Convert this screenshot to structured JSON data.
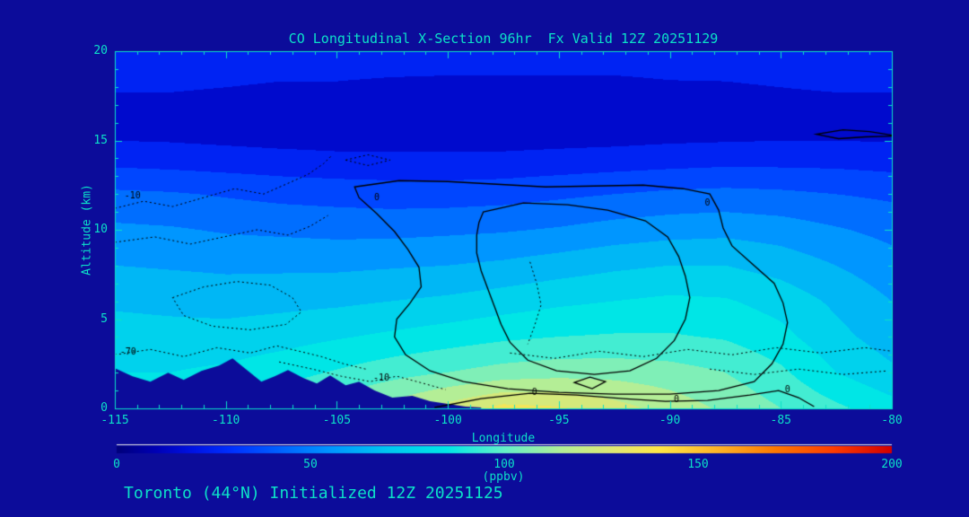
{
  "window": {
    "background": "#0c0c9a"
  },
  "chart_data": {
    "type": "heatmap",
    "title": "CO Longitudinal X-Section 96hr  Fx Valid 12Z 20251129",
    "xlabel": "Longitude",
    "ylabel": "Altitude (km)",
    "footer": "Toronto (44°N) Initialized 12Z 20251125",
    "xlim": [
      -115,
      -80
    ],
    "ylim": [
      0,
      20
    ],
    "x_ticks": [
      -115,
      -110,
      -105,
      -100,
      -95,
      -90,
      -85,
      -80
    ],
    "y_ticks": [
      0,
      5,
      10,
      15,
      20
    ],
    "grid_on": false,
    "legend_position": "none",
    "colors": {
      "background": "#0c0c9a",
      "text": "#0ce0c8",
      "axis": "#0ce0c8",
      "contour": "#000000",
      "terrain": "#0c0c9a",
      "colorbar_topline": "#e6e6e6"
    },
    "colorbar": {
      "label": "(ppbv)",
      "min": 0,
      "max": 200,
      "ticks": [
        0,
        50,
        100,
        150,
        200
      ],
      "stops": [
        [
          0,
          "#00007a"
        ],
        [
          10,
          "#0000b4"
        ],
        [
          20,
          "#0014e6"
        ],
        [
          30,
          "#0032ff"
        ],
        [
          40,
          "#005aff"
        ],
        [
          55,
          "#0096ff"
        ],
        [
          70,
          "#00c8f0"
        ],
        [
          85,
          "#00e6e6"
        ],
        [
          100,
          "#64f0c8"
        ],
        [
          115,
          "#b4ee96"
        ],
        [
          130,
          "#e6e66e"
        ],
        [
          140,
          "#ffe646"
        ],
        [
          155,
          "#ffb428"
        ],
        [
          170,
          "#ff7800"
        ],
        [
          185,
          "#ff3c00"
        ],
        [
          200,
          "#d20000"
        ]
      ]
    },
    "grid": {
      "longitudes": [
        -115,
        -112.5,
        -110,
        -107.5,
        -105,
        -102.5,
        -100,
        -97.5,
        -95,
        -92.5,
        -90,
        -87.5,
        -85,
        -82.5,
        -80
      ],
      "altitudes": [
        20,
        18,
        16,
        14,
        12,
        10,
        8,
        6,
        4,
        2,
        0
      ],
      "values_ppbv": [
        [
          27,
          27,
          26,
          25,
          25,
          25,
          24,
          24,
          24,
          24,
          24,
          25,
          26,
          26,
          26
        ],
        [
          21,
          21,
          20,
          19,
          19,
          18,
          18,
          18,
          18,
          18,
          19,
          19,
          20,
          21,
          21
        ],
        [
          14,
          14,
          13,
          12,
          12,
          12,
          12,
          12,
          12,
          12,
          13,
          13,
          14,
          14,
          14
        ],
        [
          26,
          25,
          24,
          23,
          22,
          22,
          22,
          22,
          23,
          24,
          25,
          26,
          26,
          26,
          25
        ],
        [
          42,
          41,
          39,
          37,
          36,
          35,
          35,
          36,
          38,
          40,
          42,
          43,
          42,
          40,
          38
        ],
        [
          52,
          51,
          49,
          48,
          47,
          47,
          48,
          49,
          51,
          54,
          56,
          57,
          55,
          51,
          47
        ],
        [
          60,
          59,
          58,
          58,
          58,
          59,
          60,
          62,
          65,
          68,
          70,
          70,
          66,
          60,
          54
        ],
        [
          68,
          67,
          66,
          67,
          68,
          70,
          72,
          75,
          78,
          80,
          82,
          81,
          76,
          68,
          60
        ],
        [
          75,
          74,
          74,
          76,
          79,
          82,
          85,
          88,
          90,
          91,
          91,
          89,
          83,
          73,
          65
        ],
        [
          80,
          80,
          82,
          86,
          91,
          96,
          100,
          104,
          106,
          106,
          104,
          100,
          92,
          80,
          72
        ],
        [
          84,
          86,
          90,
          96,
          105,
          114,
          124,
          133,
          131,
          124,
          116,
          108,
          100,
          92,
          84
        ]
      ]
    },
    "terrain_km": [
      [
        -115,
        2.25
      ],
      [
        -114.2,
        1.8
      ],
      [
        -113.4,
        1.5
      ],
      [
        -112.6,
        2.0
      ],
      [
        -111.9,
        1.6
      ],
      [
        -111.1,
        2.1
      ],
      [
        -110.3,
        2.4
      ],
      [
        -109.7,
        2.8
      ],
      [
        -109.1,
        2.2
      ],
      [
        -108.4,
        1.5
      ],
      [
        -107.8,
        1.8
      ],
      [
        -107.2,
        2.15
      ],
      [
        -106.5,
        1.7
      ],
      [
        -105.9,
        1.4
      ],
      [
        -105.3,
        1.85
      ],
      [
        -104.6,
        1.3
      ],
      [
        -104.0,
        1.5
      ],
      [
        -103.3,
        1.0
      ],
      [
        -102.5,
        0.6
      ],
      [
        -101.6,
        0.7
      ],
      [
        -100.8,
        0.4
      ],
      [
        -100.0,
        0.25
      ],
      [
        -99.2,
        0.1
      ],
      [
        -98.5,
        0.05
      ]
    ],
    "contours": [
      {
        "id": "outer-0",
        "style": "solid",
        "closed": true,
        "points": [
          [
            -104.2,
            12.4
          ],
          [
            -102.2,
            12.75
          ],
          [
            -100,
            12.7
          ],
          [
            -97.8,
            12.55
          ],
          [
            -95.6,
            12.4
          ],
          [
            -93.4,
            12.45
          ],
          [
            -91.2,
            12.5
          ],
          [
            -89.4,
            12.3
          ],
          [
            -88.2,
            12.0
          ],
          [
            -87.8,
            11.1
          ],
          [
            -87.6,
            10.1
          ],
          [
            -87.2,
            9.1
          ],
          [
            -86.3,
            8.1
          ],
          [
            -85.3,
            7.0
          ],
          [
            -84.9,
            5.9
          ],
          [
            -84.7,
            4.8
          ],
          [
            -84.9,
            3.6
          ],
          [
            -85.4,
            2.5
          ],
          [
            -86.2,
            1.5
          ],
          [
            -87.8,
            1.0
          ],
          [
            -90,
            0.8
          ],
          [
            -92.5,
            0.8
          ],
          [
            -95,
            0.9
          ],
          [
            -97.3,
            1.1
          ],
          [
            -99.3,
            1.5
          ],
          [
            -100.8,
            2.1
          ],
          [
            -101.9,
            3.0
          ],
          [
            -102.4,
            4.0
          ],
          [
            -102.3,
            5.0
          ],
          [
            -101.7,
            5.9
          ],
          [
            -101.2,
            6.8
          ],
          [
            -101.3,
            7.9
          ],
          [
            -101.8,
            8.9
          ],
          [
            -102.4,
            9.9
          ],
          [
            -103.2,
            10.9
          ],
          [
            -104.0,
            11.8
          ]
        ]
      },
      {
        "id": "inner-0",
        "style": "solid",
        "closed": true,
        "points": [
          [
            -98.4,
            11.0
          ],
          [
            -96.6,
            11.5
          ],
          [
            -94.6,
            11.4
          ],
          [
            -92.8,
            11.1
          ],
          [
            -91.1,
            10.5
          ],
          [
            -90.1,
            9.6
          ],
          [
            -89.6,
            8.5
          ],
          [
            -89.3,
            7.4
          ],
          [
            -89.1,
            6.2
          ],
          [
            -89.3,
            5.0
          ],
          [
            -89.8,
            3.8
          ],
          [
            -90.6,
            2.8
          ],
          [
            -91.8,
            2.1
          ],
          [
            -93.4,
            1.9
          ],
          [
            -95.1,
            2.1
          ],
          [
            -96.4,
            2.7
          ],
          [
            -97.2,
            3.7
          ],
          [
            -97.6,
            4.7
          ],
          [
            -97.9,
            5.7
          ],
          [
            -98.2,
            6.7
          ],
          [
            -98.5,
            7.7
          ],
          [
            -98.7,
            8.7
          ],
          [
            -98.7,
            9.7
          ],
          [
            -98.6,
            10.4
          ]
        ]
      },
      {
        "id": "small-0",
        "style": "solid",
        "closed": true,
        "points": [
          [
            -94.3,
            1.45
          ],
          [
            -93.6,
            1.75
          ],
          [
            -92.9,
            1.5
          ],
          [
            -93.5,
            1.1
          ]
        ]
      },
      {
        "id": "topright-0",
        "style": "solid",
        "closed": false,
        "points": [
          [
            -80,
            15.3
          ],
          [
            -81,
            15.5
          ],
          [
            -82.2,
            15.6
          ],
          [
            -83.4,
            15.35
          ],
          [
            -82.4,
            15.1
          ],
          [
            -81.2,
            15.2
          ],
          [
            -80,
            15.25
          ]
        ]
      },
      {
        "id": "bottom-0",
        "style": "solid",
        "closed": false,
        "points": [
          [
            -100.6,
            0.05
          ],
          [
            -98.5,
            0.55
          ],
          [
            -96.3,
            0.85
          ],
          [
            -94.2,
            0.75
          ],
          [
            -92.1,
            0.55
          ],
          [
            -90.2,
            0.4
          ],
          [
            -88.3,
            0.45
          ],
          [
            -86.4,
            0.75
          ],
          [
            -85.1,
            1.0
          ],
          [
            -84.2,
            0.6
          ],
          [
            -83.5,
            0.1
          ]
        ]
      },
      {
        "id": "dotted-neg10-top",
        "style": "dotted",
        "closed": false,
        "points": [
          [
            -115,
            11.2
          ],
          [
            -113.7,
            11.6
          ],
          [
            -112.4,
            11.3
          ],
          [
            -111,
            11.8
          ],
          [
            -109.6,
            12.3
          ],
          [
            -108.3,
            12.0
          ],
          [
            -107.2,
            12.6
          ],
          [
            -106.3,
            13.1
          ],
          [
            -105.6,
            13.7
          ],
          [
            -105.2,
            14.2
          ]
        ]
      },
      {
        "id": "dotted-mid-left",
        "style": "dotted",
        "closed": false,
        "points": [
          [
            -115,
            9.3
          ],
          [
            -113.2,
            9.6
          ],
          [
            -111.6,
            9.2
          ],
          [
            -110.1,
            9.6
          ],
          [
            -108.6,
            10.0
          ],
          [
            -107.2,
            9.7
          ],
          [
            -106.2,
            10.2
          ],
          [
            -105.4,
            10.8
          ]
        ]
      },
      {
        "id": "dotted-left-loop",
        "style": "dotted",
        "closed": true,
        "points": [
          [
            -112.4,
            6.2
          ],
          [
            -111,
            6.8
          ],
          [
            -109.5,
            7.1
          ],
          [
            -108,
            6.9
          ],
          [
            -107,
            6.2
          ],
          [
            -106.6,
            5.4
          ],
          [
            -107.3,
            4.7
          ],
          [
            -108.9,
            4.4
          ],
          [
            -110.6,
            4.6
          ],
          [
            -111.9,
            5.2
          ]
        ]
      },
      {
        "id": "dotted-neg70",
        "style": "dotted",
        "closed": false,
        "points": [
          [
            -115,
            3.0
          ],
          [
            -113.4,
            3.3
          ],
          [
            -111.9,
            2.9
          ],
          [
            -110.4,
            3.4
          ],
          [
            -108.9,
            3.1
          ],
          [
            -107.7,
            3.5
          ],
          [
            -106.7,
            3.2
          ],
          [
            -105.7,
            2.9
          ],
          [
            -104.7,
            2.5
          ],
          [
            -103.7,
            2.2
          ]
        ]
      },
      {
        "id": "dotted-neg10-low",
        "style": "dotted",
        "closed": false,
        "points": [
          [
            -107.6,
            2.6
          ],
          [
            -106.1,
            2.2
          ],
          [
            -104.8,
            1.8
          ],
          [
            -103.5,
            1.5
          ],
          [
            -102.3,
            1.8
          ],
          [
            -101.1,
            1.4
          ],
          [
            -100.1,
            1.05
          ]
        ]
      },
      {
        "id": "dotted-right-3km",
        "style": "dotted",
        "closed": false,
        "points": [
          [
            -97.2,
            3.1
          ],
          [
            -95.2,
            2.8
          ],
          [
            -93.2,
            3.2
          ],
          [
            -91.2,
            2.9
          ],
          [
            -89.2,
            3.3
          ],
          [
            -87.2,
            3.0
          ],
          [
            -85.2,
            3.4
          ],
          [
            -83.2,
            3.1
          ],
          [
            -81.2,
            3.4
          ],
          [
            -80,
            3.2
          ]
        ]
      },
      {
        "id": "dotted-right-2km",
        "style": "dotted",
        "closed": false,
        "points": [
          [
            -88.2,
            2.2
          ],
          [
            -86.2,
            1.9
          ],
          [
            -84.2,
            2.2
          ],
          [
            -82.2,
            1.9
          ],
          [
            -80.2,
            2.1
          ]
        ]
      },
      {
        "id": "dotted-mid-column",
        "style": "dotted",
        "closed": false,
        "points": [
          [
            -96.3,
            8.2
          ],
          [
            -96.0,
            7.0
          ],
          [
            -95.8,
            5.8
          ],
          [
            -96.1,
            4.6
          ],
          [
            -96.4,
            3.6
          ]
        ]
      },
      {
        "id": "dotted-top-small-loop",
        "style": "dotted",
        "closed": true,
        "points": [
          [
            -104.6,
            13.9
          ],
          [
            -103.6,
            14.2
          ],
          [
            -102.6,
            13.9
          ],
          [
            -103.6,
            13.6
          ]
        ]
      }
    ],
    "contour_labels": [
      {
        "text": "-10",
        "lon": -114.2,
        "alt": 11.9
      },
      {
        "text": "0",
        "lon": -103.2,
        "alt": 11.8
      },
      {
        "text": "0",
        "lon": -88.3,
        "alt": 11.5
      },
      {
        "text": "-70",
        "lon": -114.4,
        "alt": 3.15
      },
      {
        "text": "-10",
        "lon": -103.0,
        "alt": 1.7
      },
      {
        "text": "0",
        "lon": -96.1,
        "alt": 0.9
      },
      {
        "text": "0",
        "lon": -89.7,
        "alt": 0.5
      },
      {
        "text": "0",
        "lon": -84.7,
        "alt": 1.05
      }
    ]
  }
}
